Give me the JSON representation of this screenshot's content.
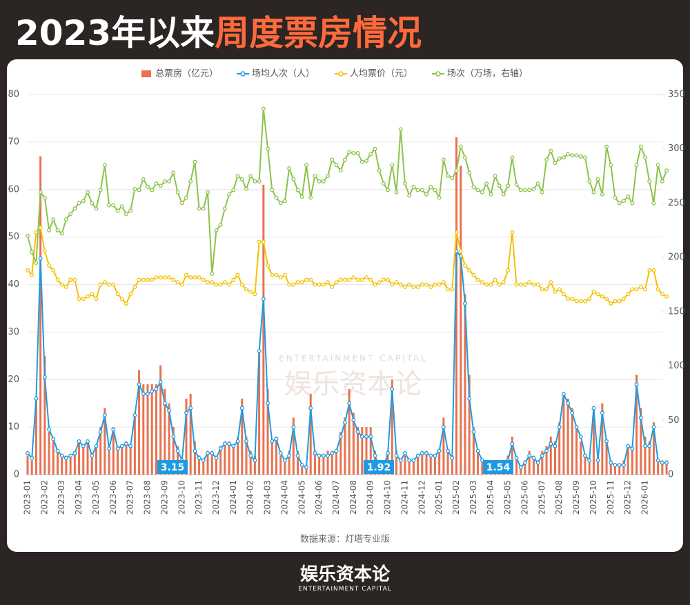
{
  "header": {
    "title_main": "2023年以来",
    "title_highlight": "周度票房情况"
  },
  "chart_data": {
    "type": "combo",
    "categories": [
      "2023-01",
      null,
      null,
      null,
      "2023-02",
      null,
      null,
      null,
      "2023-03",
      null,
      null,
      null,
      "2023-04",
      null,
      null,
      null,
      "2023-05",
      null,
      null,
      null,
      "2023-06",
      null,
      null,
      null,
      "2023-07",
      null,
      null,
      null,
      "2023-08",
      null,
      null,
      null,
      "2023-09",
      null,
      null,
      null,
      "2023-10",
      null,
      null,
      null,
      "2023-11",
      null,
      null,
      null,
      "2023-12",
      null,
      null,
      null,
      "2024-01",
      null,
      null,
      null,
      "2024-02",
      null,
      null,
      null,
      "2024-03",
      null,
      null,
      null,
      "2024-04",
      null,
      null,
      null,
      "2024-05",
      null,
      null,
      null,
      "2024-06",
      null,
      null,
      null,
      "2024-07",
      null,
      null,
      null,
      "2024-08",
      null,
      null,
      null,
      "2024-09",
      null,
      null,
      null,
      "2024-10",
      null,
      null,
      null,
      "2024-11",
      null,
      null,
      null,
      "2024-12",
      null,
      null,
      null,
      "2025-01",
      null,
      null,
      null,
      "2025-02",
      null,
      null,
      null,
      "2025-03",
      null,
      null,
      null,
      "2025-04",
      null,
      null,
      null,
      "2025-05",
      null,
      null,
      null,
      "2025-06",
      null,
      null,
      null,
      "2025-07",
      null,
      null,
      null,
      "2025-08",
      null,
      null,
      null,
      "2025-09",
      null,
      null,
      null,
      "2025-10",
      null,
      null,
      null,
      "2025-11",
      null,
      null,
      null,
      "2025-12",
      null,
      null,
      null,
      "2026-01",
      null,
      null,
      null,
      null,
      null
    ],
    "series": [
      {
        "name": "总票房（亿元）",
        "type": "bar",
        "color": "#e8714f",
        "values": [
          4,
          3,
          16,
          67,
          25,
          9,
          7,
          5,
          4,
          4,
          4,
          5,
          7,
          6,
          7,
          4,
          6,
          10,
          14,
          6,
          10,
          6,
          6,
          7,
          6,
          13,
          22,
          19,
          19,
          19,
          19,
          23,
          18,
          15,
          10,
          6,
          3,
          16,
          17,
          7,
          4,
          3,
          5,
          5,
          4,
          6,
          7,
          7,
          6,
          8,
          16,
          8,
          5,
          4,
          26,
          61,
          18,
          7,
          8,
          4,
          3,
          5,
          12,
          5,
          2,
          2,
          17,
          5,
          4,
          4,
          5,
          5,
          5,
          9,
          12,
          18,
          13,
          10,
          10,
          10,
          10,
          5,
          2,
          2,
          5,
          20,
          5,
          3,
          4,
          3,
          3,
          4,
          5,
          5,
          4,
          4,
          5,
          12,
          5,
          4,
          71,
          65,
          38,
          21,
          10,
          5,
          3,
          2,
          2,
          3,
          2,
          2,
          4,
          8,
          4,
          2,
          3,
          5,
          4,
          3,
          5,
          6,
          8,
          7,
          11,
          17,
          16,
          14,
          10,
          7,
          4,
          3,
          14,
          3,
          15,
          7,
          3,
          2,
          2,
          3,
          6,
          6,
          21,
          14,
          8,
          7,
          11,
          3,
          3,
          3
        ]
      },
      {
        "name": "场均人次（人）",
        "type": "line",
        "color": "#1e9be0",
        "values": [
          4.5,
          3.5,
          16,
          45.5,
          20.5,
          9.5,
          7.5,
          5,
          4,
          3.5,
          4,
          4.5,
          7,
          6,
          7,
          4,
          6,
          9,
          12.5,
          5.5,
          9.5,
          5.5,
          6,
          6.5,
          6,
          12.5,
          19,
          17,
          17,
          17.5,
          18,
          19.5,
          15,
          13.5,
          8,
          5,
          3,
          13,
          14,
          5,
          3.5,
          3,
          4.5,
          4.5,
          3.5,
          5.5,
          6.5,
          6.5,
          6,
          7,
          14,
          7,
          4,
          3,
          26,
          37,
          15,
          7,
          7.5,
          4.5,
          3,
          4,
          10,
          4,
          2,
          1.5,
          14,
          4.5,
          4,
          4,
          4,
          4.5,
          5,
          8,
          11,
          15,
          11.5,
          9,
          8,
          8,
          8,
          4,
          1.5,
          1.5,
          4.5,
          18,
          4,
          3,
          4.5,
          3,
          3,
          4,
          4.5,
          4.5,
          4,
          4,
          5,
          10,
          5,
          3.5,
          47,
          46,
          36,
          16,
          9,
          5,
          3,
          2,
          1.5,
          2,
          2,
          1.5,
          3,
          6.5,
          3.5,
          1.5,
          2.5,
          4,
          3.5,
          2.5,
          4,
          5,
          6.5,
          6,
          10,
          17,
          15,
          13,
          10,
          8,
          4,
          3,
          14,
          3,
          13,
          7,
          2.5,
          2,
          2,
          2,
          6,
          5.5,
          19,
          12,
          6,
          6,
          10,
          3,
          2.5,
          2.5
        ]
      },
      {
        "name": "人均票价（元）",
        "type": "line",
        "color": "#f2c200",
        "values": [
          43,
          42,
          51,
          52,
          47,
          44,
          43,
          41,
          40,
          39.5,
          41,
          41,
          37,
          37,
          37.5,
          38,
          37,
          40,
          40.5,
          40,
          40,
          38,
          37,
          36,
          38,
          39.5,
          41,
          41,
          41,
          41,
          41.5,
          41.5,
          41.5,
          41.5,
          41,
          40.5,
          40,
          42,
          41.5,
          41.5,
          41.5,
          41,
          40.5,
          40.5,
          40,
          40,
          40.5,
          40,
          41,
          42,
          40,
          39,
          38.5,
          38,
          49,
          49,
          44,
          42,
          42,
          41.5,
          42,
          40,
          40,
          40.5,
          40.5,
          41,
          41,
          40,
          40,
          40,
          40.5,
          39.5,
          40.5,
          41,
          41,
          41,
          41.5,
          41,
          41,
          41.5,
          41,
          40,
          40.5,
          41,
          41,
          40,
          40.5,
          40,
          39.5,
          40,
          39.5,
          39.5,
          40,
          40,
          39.5,
          40,
          40,
          40.5,
          39,
          39,
          51,
          47,
          44,
          43,
          42,
          41,
          40.5,
          40,
          40,
          41,
          40,
          40.5,
          43,
          51,
          40,
          40,
          40,
          40.5,
          40,
          40,
          39,
          39,
          40.5,
          38.5,
          39,
          38,
          37,
          37,
          36.5,
          36.5,
          36.5,
          37,
          38.5,
          38,
          37.5,
          37,
          36,
          36.5,
          36.5,
          37,
          38,
          39,
          39,
          39.5,
          39,
          43,
          43,
          39,
          38,
          37.5
        ]
      },
      {
        "name": "场次（万场，右轴）",
        "type": "line",
        "axis": "y2",
        "color": "#8bc34a",
        "values": [
          220,
          205,
          195,
          260,
          255,
          225,
          235,
          225,
          222,
          235,
          240,
          245,
          250,
          252,
          260,
          250,
          245,
          262,
          285,
          248,
          248,
          243,
          247,
          240,
          243,
          263,
          262,
          272,
          265,
          262,
          268,
          266,
          270,
          270,
          278,
          260,
          250,
          255,
          270,
          288,
          245,
          245,
          260,
          185,
          225,
          230,
          245,
          258,
          262,
          275,
          272,
          263,
          275,
          270,
          270,
          337,
          300,
          262,
          255,
          250,
          252,
          282,
          272,
          262,
          256,
          285,
          255,
          275,
          270,
          270,
          275,
          290,
          285,
          280,
          290,
          297,
          296,
          296,
          288,
          289,
          295,
          300,
          280,
          268,
          262,
          285,
          260,
          318,
          268,
          257,
          265,
          262,
          262,
          258,
          265,
          262,
          255,
          290,
          275,
          273,
          280,
          302,
          292,
          278,
          265,
          262,
          260,
          268,
          258,
          275,
          266,
          258,
          266,
          292,
          267,
          262,
          262,
          262,
          263,
          268,
          260,
          290,
          298,
          287,
          291,
          292,
          295,
          294,
          294,
          293,
          292,
          270,
          260,
          272,
          258,
          302,
          285,
          255,
          250,
          252,
          256,
          250,
          285,
          302,
          292,
          270,
          250,
          285,
          270,
          280
        ]
      }
    ],
    "ylim": [
      0,
      80
    ],
    "yticks": [
      0,
      10,
      20,
      30,
      40,
      50,
      60,
      70,
      80
    ],
    "y2lim": [
      0,
      350
    ],
    "y2ticks": [
      0,
      50,
      100,
      150,
      200,
      250,
      300,
      350
    ],
    "grid": true,
    "legend": "top",
    "annotations": [
      "3.15",
      "1.92",
      "1.54"
    ],
    "source": "数据来源：灯塔专业版"
  },
  "footer": {
    "brand": "娱乐资本论",
    "brand_en": "ENTERTAINMENT CAPITAL"
  }
}
